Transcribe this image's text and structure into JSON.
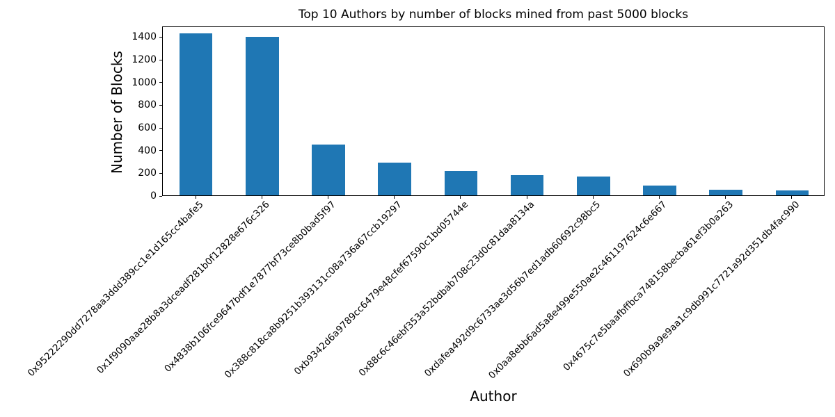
{
  "chart_data": {
    "type": "bar",
    "title": "Top 10 Authors by number of blocks mined from past 5000 blocks",
    "xlabel": "Author",
    "ylabel": "Number of Blocks",
    "categories": [
      "0x95222290dd7278aa3ddd389cc1e1d165cc4bafe5",
      "0x1f9090aae28b8a3dceadf281b0f12828e676c326",
      "0x4838b106fce9647bdf1e7877bf73ce8b0bad5f97",
      "0x388c818ca8b9251b393131c08a736a67ccb19297",
      "0xb9342d6a9789cc6479e48cfef67590c1bd05744e",
      "0x88c6c46ebf353a52bdbab708c23d0c81daa8134a",
      "0xdafea492d9c6733ae3d56b7ed1adb60692c98bc5",
      "0x0aa8ebb6ad5a8e499e550ae2c461197624c6e667",
      "0x4675c7e5baafbffbca748158becba61ef3b0a263",
      "0x690b9a9e9aa1c9db991c7721a92d351db4fac990"
    ],
    "values": [
      1425,
      1396,
      447,
      288,
      214,
      180,
      168,
      84,
      52,
      45
    ],
    "yticks": [
      0,
      200,
      400,
      600,
      800,
      1000,
      1200,
      1400
    ],
    "ylim": [
      0,
      1494
    ],
    "x_tick_rotation": 45,
    "grid": false,
    "legend": false,
    "bar_color": "#1f77b4",
    "axis_color": "#000000",
    "background_color": "#ffffff"
  }
}
